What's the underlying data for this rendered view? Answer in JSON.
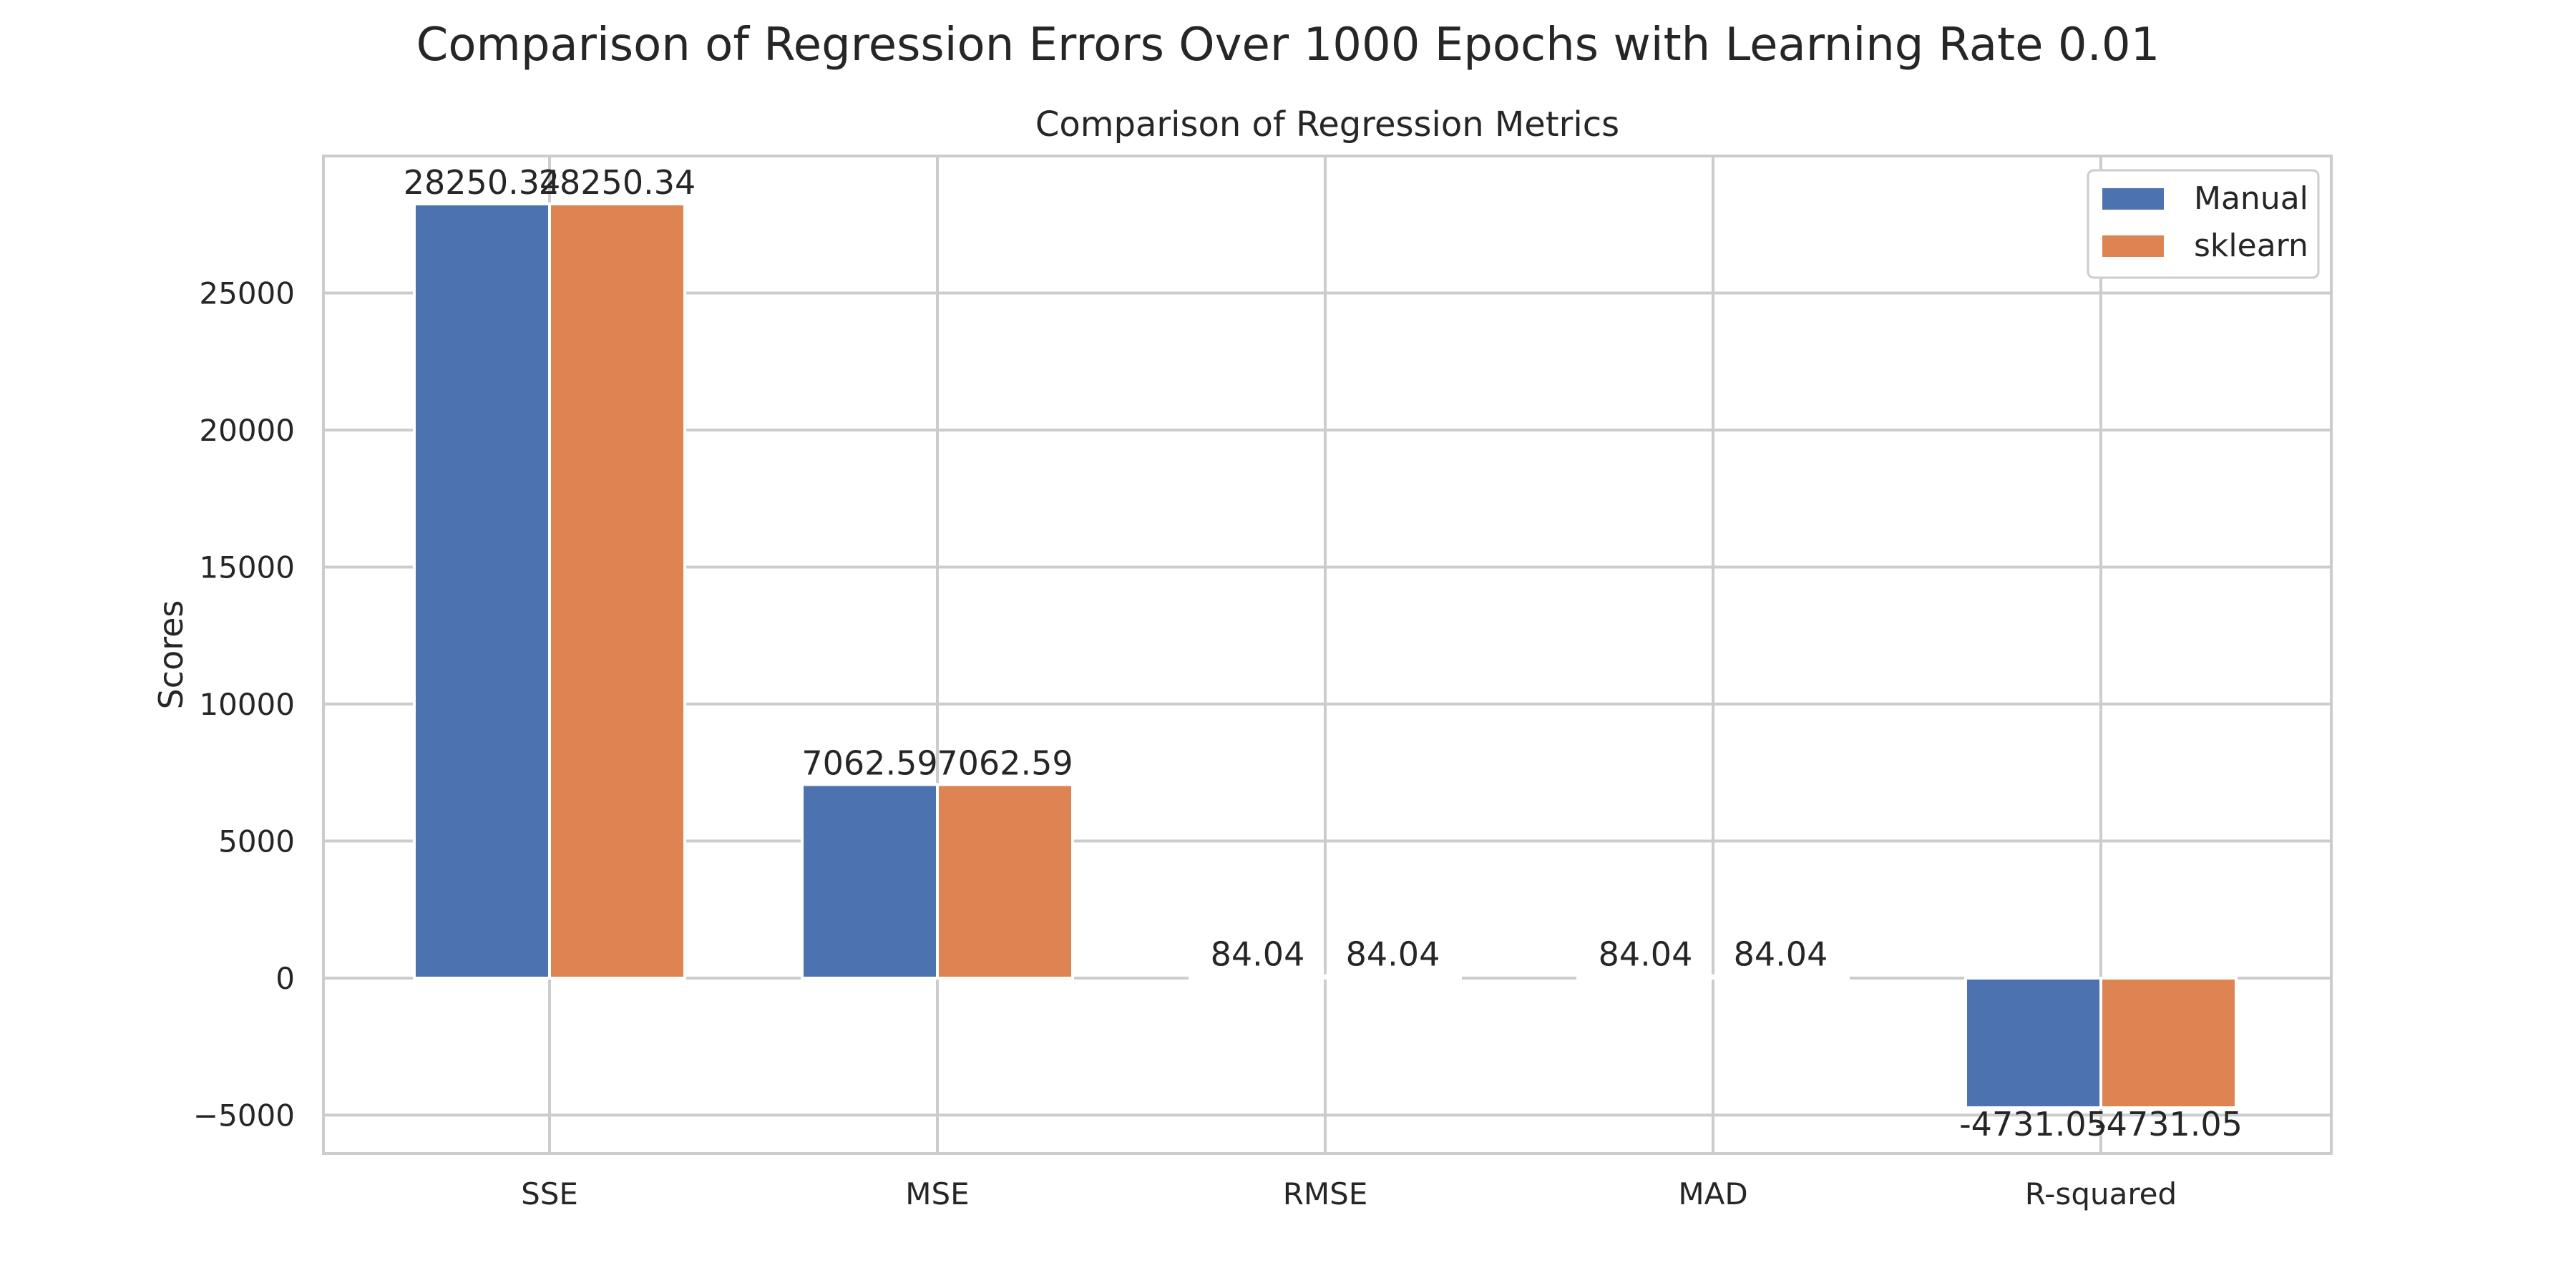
{
  "chart_data": {
    "type": "bar",
    "suptitle": "Comparison of Regression Errors Over 1000 Epochs with Learning Rate 0.01",
    "title": "Comparison of Regression Metrics",
    "xlabel": "",
    "ylabel": "Scores",
    "categories": [
      "SSE",
      "MSE",
      "RMSE",
      "MAD",
      "R-squared"
    ],
    "series": [
      {
        "name": "Manual",
        "color": "#4c72b0",
        "values": [
          28250.34,
          7062.59,
          84.04,
          84.04,
          -4731.05
        ]
      },
      {
        "name": "sklearn",
        "color": "#dd8452",
        "values": [
          28250.34,
          7062.59,
          84.04,
          84.04,
          -4731.05
        ]
      }
    ],
    "value_labels": [
      [
        "28250.34",
        "7062.59",
        "84.04",
        "84.04",
        "-4731.05"
      ],
      [
        "28250.34",
        "7062.59",
        "84.04",
        "84.04",
        "-4731.05"
      ]
    ],
    "ylim": [
      -6400,
      30000
    ],
    "yticks": [
      -5000,
      0,
      5000,
      10000,
      15000,
      20000,
      25000
    ],
    "ytick_labels": [
      "−5000",
      "0",
      "5000",
      "10000",
      "15000",
      "20000",
      "25000"
    ],
    "grid": true,
    "legend_position": "top-right"
  }
}
